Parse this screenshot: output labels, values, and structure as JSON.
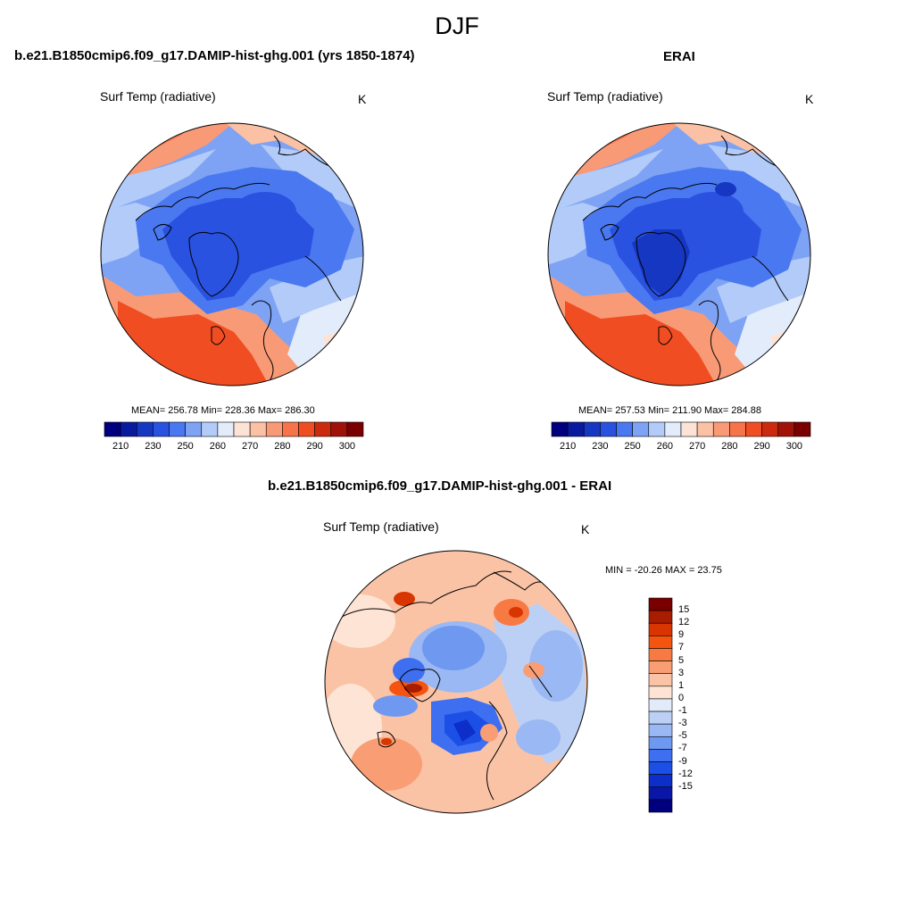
{
  "figure": {
    "season": "DJF",
    "difference_title": "b.e21.B1850cmip6.f09_g17.DAMIP-hist-ghg.001 - ERAI"
  },
  "panels": [
    {
      "title": "b.e21.B1850cmip6.f09_g17.DAMIP-hist-ghg.001 (yrs 1850-1874)",
      "variable": "Surf Temp (radiative)",
      "units": "K",
      "stats": "MEAN= 256.78  Min= 228.36  Max= 286.30"
    },
    {
      "title": "ERAI",
      "variable": "Surf Temp (radiative)",
      "units": "K",
      "stats": "MEAN= 257.53  Min= 211.90  Max= 284.88"
    },
    {
      "variable": "Surf Temp (radiative)",
      "units": "K",
      "stats": "MIN = -20.26 MAX =  23.75"
    }
  ],
  "colorbar_abs": {
    "colors": [
      "#00007f",
      "#0a1a9f",
      "#1637c2",
      "#2a52e0",
      "#4a78f0",
      "#7ea3f4",
      "#b3cbf9",
      "#e3ecfb",
      "#fde3d6",
      "#fbc1a5",
      "#f99a76",
      "#f7744a",
      "#f04e22",
      "#cc2a0e",
      "#a01208",
      "#7a0000"
    ],
    "labels": [
      "210",
      "230",
      "250",
      "260",
      "270",
      "280",
      "290",
      "300"
    ]
  },
  "colorbar_diff": {
    "colors": [
      "#7a0000",
      "#a81c00",
      "#d93500",
      "#f4540f",
      "#f77a42",
      "#f99e74",
      "#fbc3a6",
      "#fde4d4",
      "#e2ebf9",
      "#bcd0f6",
      "#9ab8f3",
      "#6f98f1",
      "#3e6ff0",
      "#1c4fe6",
      "#0d2ec8",
      "#0a17a6",
      "#00007f"
    ],
    "labels": [
      "15",
      "12",
      "9",
      "7",
      "5",
      "3",
      "1",
      "0",
      "-1",
      "-3",
      "-5",
      "-7",
      "-9",
      "-12",
      "-15"
    ]
  },
  "chart_data": [
    {
      "type": "heatmap",
      "title": "b.e21.B1850cmip6.f09_g17.DAMIP-hist-ghg.001 (yrs 1850-1874)",
      "variable": "Surf Temp (radiative)",
      "units": "K",
      "projection": "north polar stereographic",
      "mean": 256.78,
      "min": 228.36,
      "max": 286.3,
      "contour_levels": [
        210,
        215,
        220,
        225,
        230,
        235,
        240,
        245,
        250,
        255,
        260,
        265,
        270,
        275,
        280,
        285,
        290,
        295,
        300
      ]
    },
    {
      "type": "heatmap",
      "title": "ERAI",
      "variable": "Surf Temp (radiative)",
      "units": "K",
      "projection": "north polar stereographic",
      "mean": 257.53,
      "min": 211.9,
      "max": 284.88,
      "contour_levels": [
        210,
        215,
        220,
        225,
        230,
        235,
        240,
        245,
        250,
        255,
        260,
        265,
        270,
        275,
        280,
        285,
        290,
        295,
        300
      ]
    },
    {
      "type": "heatmap",
      "title": "b.e21.B1850cmip6.f09_g17.DAMIP-hist-ghg.001 - ERAI",
      "variable": "Surf Temp (radiative)",
      "units": "K",
      "projection": "north polar stereographic",
      "min": -20.26,
      "max": 23.75,
      "contour_levels": [
        -15,
        -12,
        -9,
        -7,
        -5,
        -3,
        -1,
        0,
        1,
        3,
        5,
        7,
        9,
        12,
        15
      ]
    }
  ]
}
